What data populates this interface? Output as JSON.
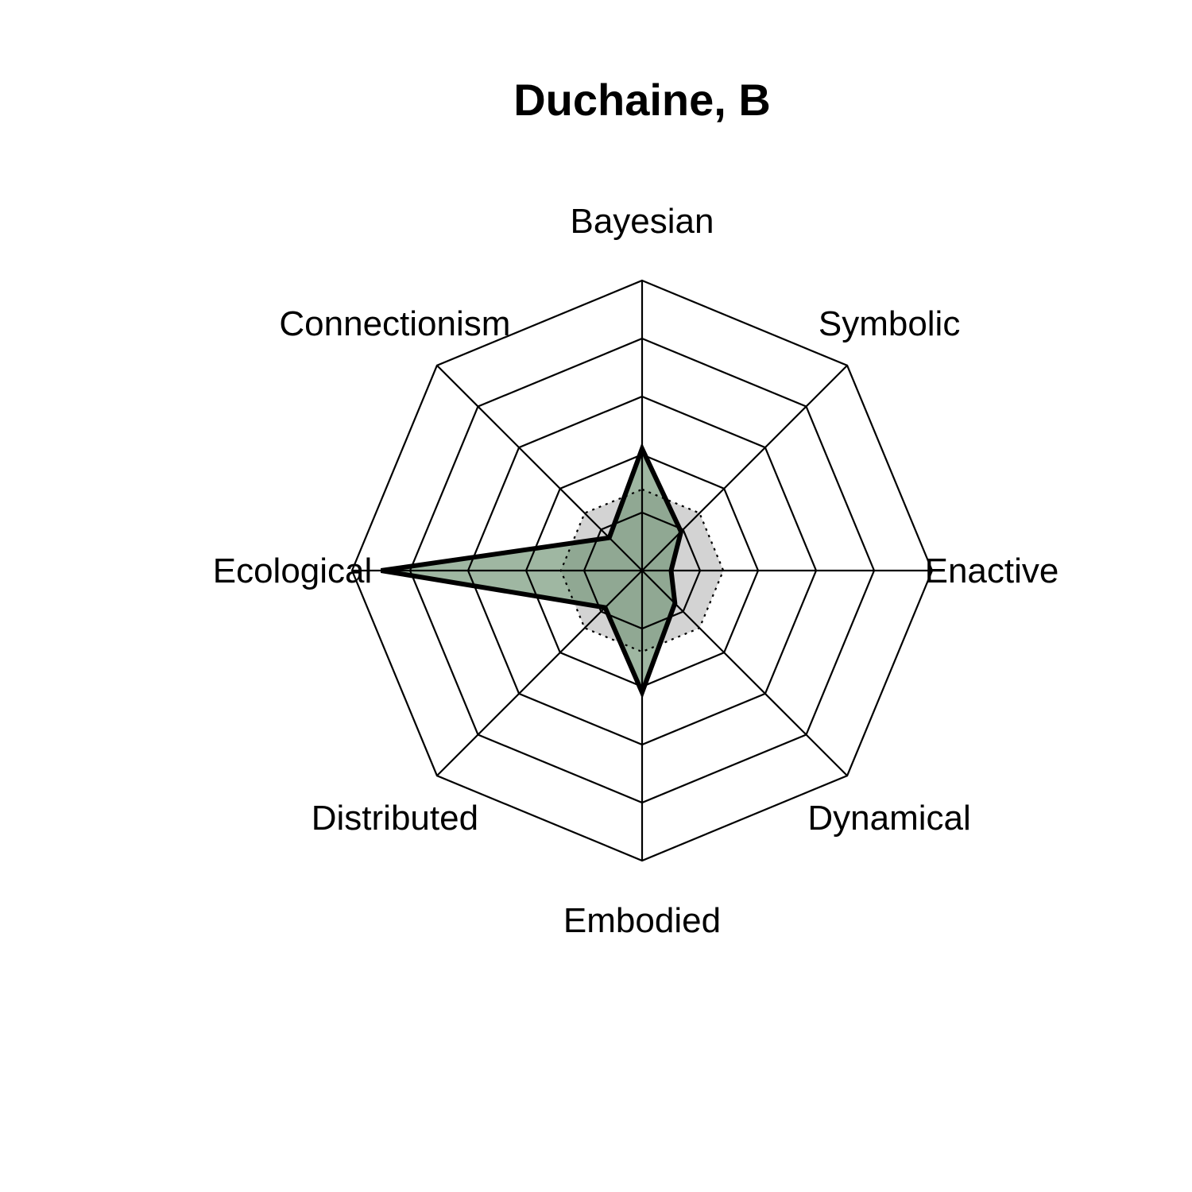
{
  "chart_data": {
    "type": "radar",
    "title": "Duchaine, B",
    "axes": [
      "Bayesian",
      "Symbolic",
      "Enactive",
      "Dynamical",
      "Embodied",
      "Distributed",
      "Ecological",
      "Connectionism"
    ],
    "rmin": 0,
    "rmax": 5,
    "grid_levels": 5,
    "grid_shape": "octagon",
    "series": [
      {
        "role": "reference",
        "values": [
          1.4,
          1.4,
          1.4,
          1.4,
          1.4,
          1.4,
          1.4,
          1.4
        ],
        "line_style": "dotted",
        "line_color": "#000000",
        "fill_color": "#d3d3d3"
      },
      {
        "role": "subject",
        "values": [
          2.1,
          0.95,
          0.5,
          0.8,
          2.1,
          0.9,
          4.5,
          0.8
        ],
        "line_style": "solid",
        "line_color": "#000000",
        "fill_color": "#6b9070"
      }
    ]
  }
}
